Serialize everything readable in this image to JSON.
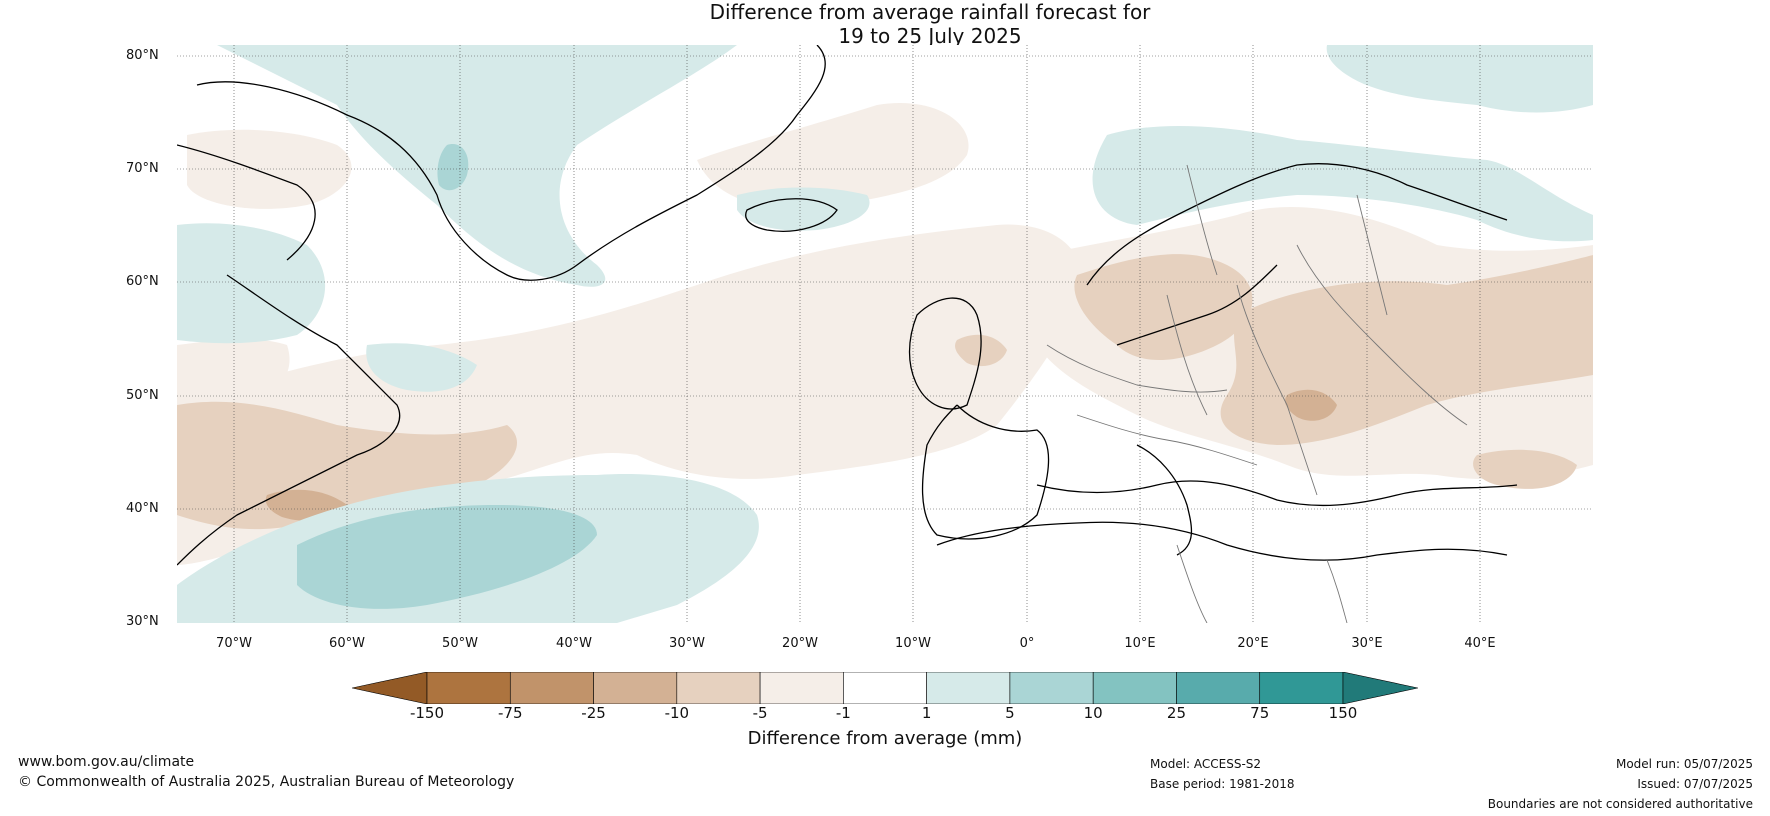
{
  "title": {
    "line1": "Difference from average rainfall forecast for",
    "line2": "19 to 25 July 2025"
  },
  "map": {
    "lat_labels": [
      "80°N",
      "70°N",
      "60°N",
      "50°N",
      "40°N",
      "30°N"
    ],
    "lon_labels": [
      "70°W",
      "60°W",
      "50°W",
      "40°W",
      "30°W",
      "20°W",
      "10°W",
      "0°",
      "10°E",
      "20°E",
      "30°E",
      "40°E"
    ],
    "extent": {
      "lon_min": -75,
      "lon_max": 50,
      "lat_min": 30,
      "lat_max": 81
    },
    "land_outline_color": "#000000",
    "border_color": "#666666"
  },
  "colorbar": {
    "label": "Difference from average (mm)",
    "ticks": [
      "-150",
      "-75",
      "-25",
      "-10",
      "-5",
      "-1",
      "1",
      "5",
      "10",
      "25",
      "75",
      "150"
    ],
    "colors": [
      "#935a26",
      "#ad743f",
      "#c1936a",
      "#d3b194",
      "#e6d1bf",
      "#f5eee8",
      "#ffffff",
      "#d6eae9",
      "#aad5d5",
      "#83c3c1",
      "#58abac",
      "#309896",
      "#217a79"
    ]
  },
  "footer": {
    "website": "www.bom.gov.au/climate",
    "copyright": "© Commonwealth of Australia 2025, Australian Bureau of Meteorology",
    "model": "Model: ACCESS-S2",
    "base_period": "Base period: 1981-2018",
    "model_run": "Model run: 05/07/2025",
    "issued": "Issued: 07/07/2025",
    "disclaimer": "Boundaries are not considered authoritative"
  }
}
